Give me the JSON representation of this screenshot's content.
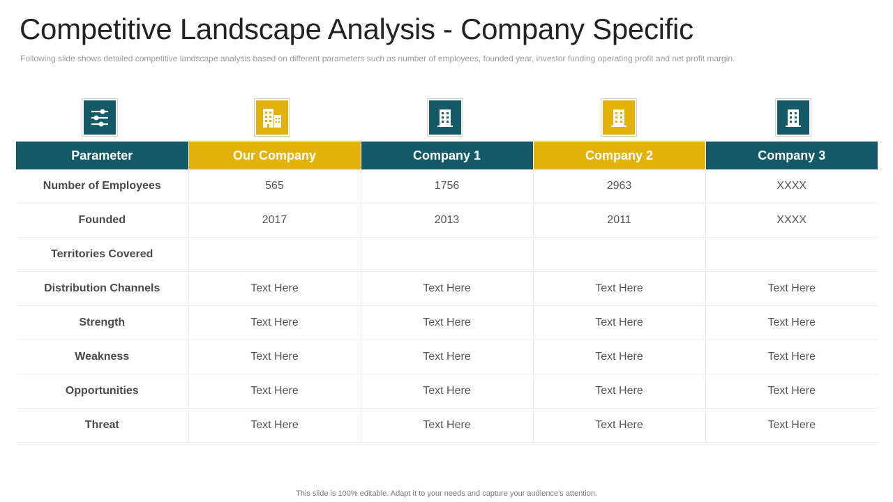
{
  "slide": {
    "title": "Competitive Landscape Analysis - Company Specific",
    "subtitle": "Following slide shows detailed competitive landscape analysis based on different parameters such as number of employees, founded year, investor funding operating profit and net profit margin.",
    "footer": "This slide is 100% editable. Adapt it to your needs and capture your audience's attention."
  },
  "colors": {
    "teal": "#145a66",
    "gold": "#e3b20a"
  },
  "icons": [
    "sliders-icon",
    "buildings-icon",
    "office-building-icon",
    "office-building-icon",
    "office-building-icon"
  ],
  "table": {
    "headers": [
      "Parameter",
      "Our Company",
      "Company 1",
      "Company 2",
      "Company 3"
    ],
    "rows": [
      {
        "param": "Number of Employees",
        "values": [
          "565",
          "1756",
          "2963",
          "XXXX"
        ]
      },
      {
        "param": "Founded",
        "values": [
          "2017",
          "2013",
          "2011",
          "XXXX"
        ]
      },
      {
        "param": "Territories Covered",
        "values": [
          "",
          "",
          "",
          ""
        ]
      },
      {
        "param": "Distribution Channels",
        "values": [
          "Text Here",
          "Text Here",
          "Text Here",
          "Text Here"
        ]
      },
      {
        "param": "Strength",
        "values": [
          "Text Here",
          "Text Here",
          "Text Here",
          "Text Here"
        ]
      },
      {
        "param": "Weakness",
        "values": [
          "Text Here",
          "Text Here",
          "Text Here",
          "Text Here"
        ]
      },
      {
        "param": "Opportunities",
        "values": [
          "Text Here",
          "Text Here",
          "Text Here",
          "Text Here"
        ]
      },
      {
        "param": "Threat",
        "values": [
          "Text Here",
          "Text Here",
          "Text Here",
          "Text Here"
        ]
      }
    ]
  }
}
